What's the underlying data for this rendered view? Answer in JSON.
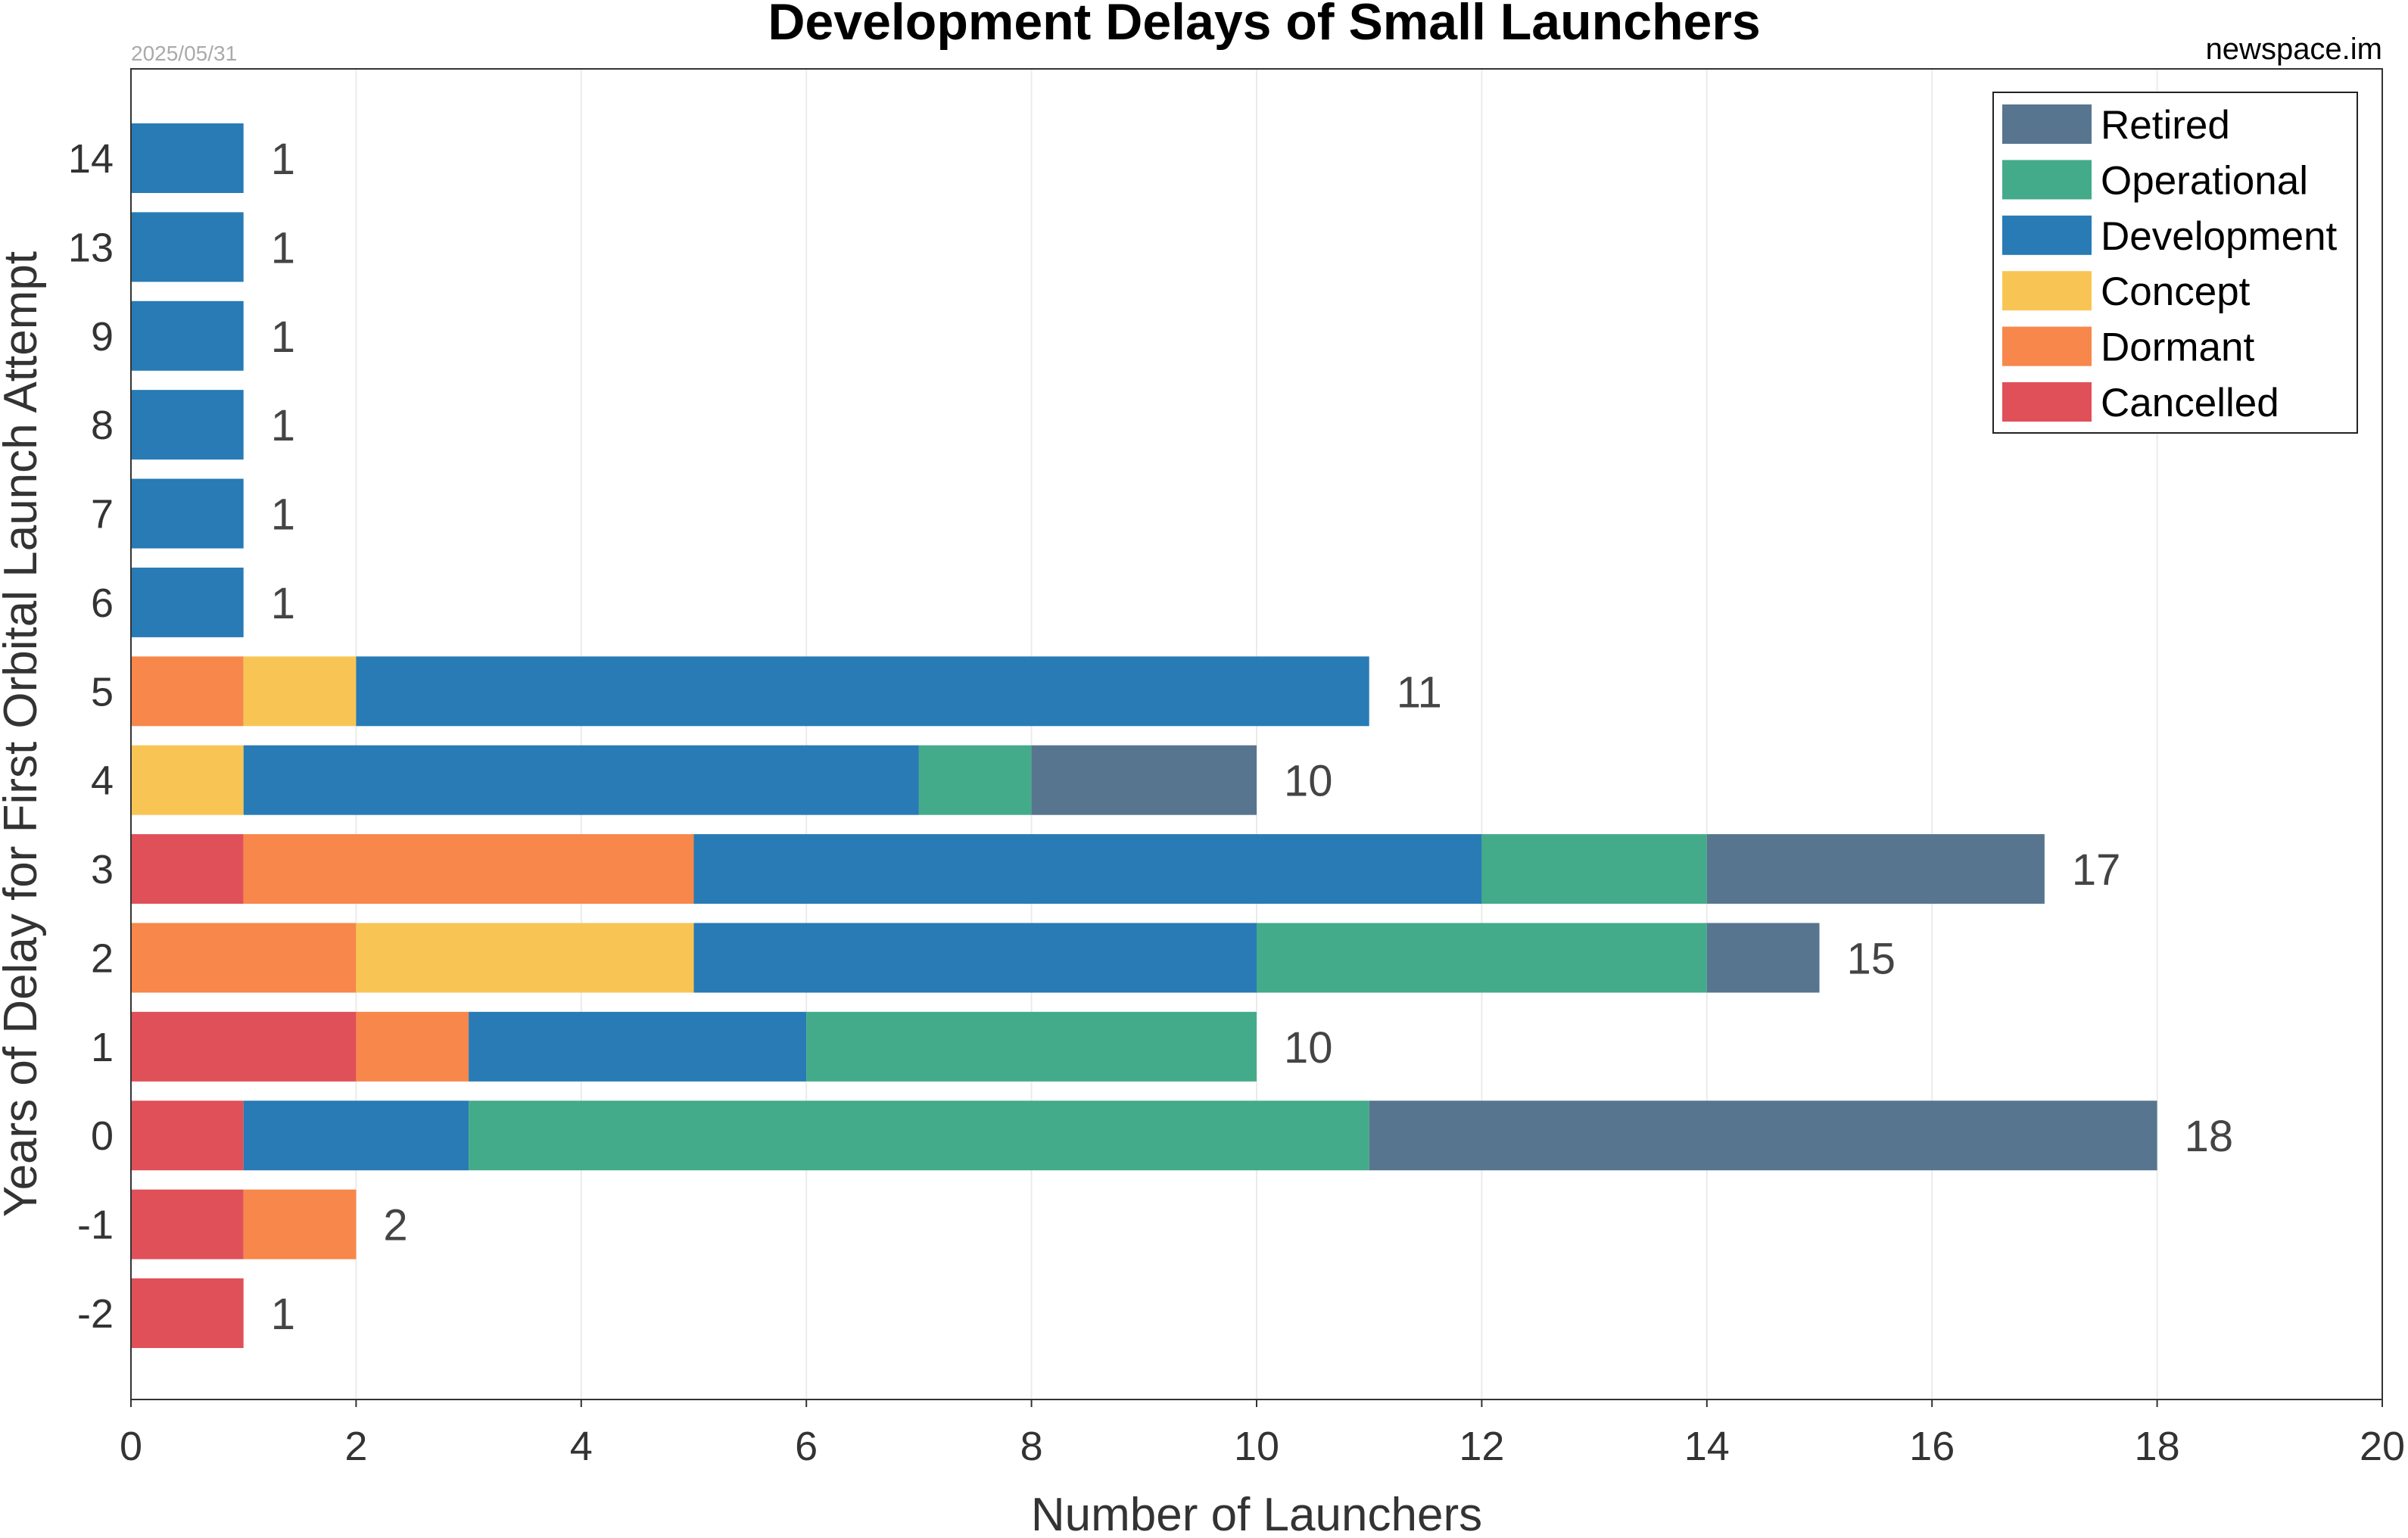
{
  "chart_data": {
    "type": "bar",
    "orientation": "horizontal",
    "stacked": true,
    "title": "Development Delays of Small Launchers",
    "date": "2025/05/31",
    "source": "newspace.im",
    "xlabel": "Number of Launchers",
    "ylabel": "Years of Delay for First Orbital Launch Attempt",
    "xlim": [
      0,
      20
    ],
    "xticks": [
      "0",
      "2",
      "4",
      "6",
      "8",
      "10",
      "12",
      "14",
      "16",
      "18",
      "20"
    ],
    "grid": "vertical",
    "legend_position": "top-right",
    "categories": [
      "-2",
      "-1",
      "0",
      "1",
      "2",
      "3",
      "4",
      "5",
      "6",
      "7",
      "8",
      "9",
      "13",
      "14"
    ],
    "series": [
      {
        "name": "Cancelled",
        "color": "#e05058",
        "values": [
          1,
          1,
          1,
          2,
          0,
          1,
          0,
          0,
          0,
          0,
          0,
          0,
          0,
          0
        ]
      },
      {
        "name": "Dormant",
        "color": "#f7874b",
        "values": [
          0,
          1,
          0,
          1,
          2,
          4,
          0,
          1,
          0,
          0,
          0,
          0,
          0,
          0
        ]
      },
      {
        "name": "Concept",
        "color": "#f8c555",
        "values": [
          0,
          0,
          0,
          0,
          3,
          0,
          1,
          1,
          0,
          0,
          0,
          0,
          0,
          0
        ]
      },
      {
        "name": "Development",
        "color": "#287bb5",
        "values": [
          0,
          0,
          2,
          3,
          5,
          7,
          6,
          9,
          1,
          1,
          1,
          1,
          1,
          1
        ]
      },
      {
        "name": "Operational",
        "color": "#44ab8a",
        "values": [
          0,
          0,
          8,
          4,
          4,
          2,
          1,
          0,
          0,
          0,
          0,
          0,
          0,
          0
        ]
      },
      {
        "name": "Retired",
        "color": "#58758f",
        "values": [
          0,
          0,
          7,
          0,
          1,
          3,
          2,
          0,
          0,
          0,
          0,
          0,
          0,
          0
        ]
      }
    ],
    "totals": [
      "1",
      "2",
      "18",
      "10",
      "15",
      "17",
      "10",
      "11",
      "1",
      "1",
      "1",
      "1",
      "1",
      "1"
    ],
    "legend_order": [
      "Retired",
      "Operational",
      "Development",
      "Concept",
      "Dormant",
      "Cancelled"
    ]
  }
}
